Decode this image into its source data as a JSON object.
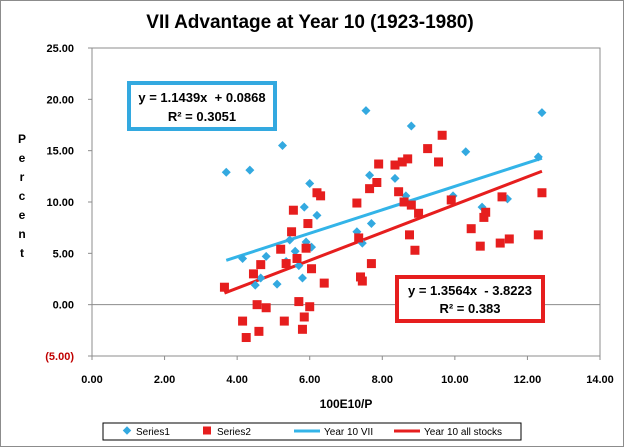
{
  "chart_data": {
    "type": "scatter",
    "title": "VII Advantage at Year 10 (1923-1980)",
    "xlabel": "100E10/P",
    "ylabel": "Percent",
    "xlim": [
      0,
      14
    ],
    "ylim": [
      -5,
      25
    ],
    "x_ticks": [
      0,
      2,
      4,
      6,
      8,
      10,
      12,
      14
    ],
    "x_tick_labels": [
      "0.00",
      "2.00",
      "4.00",
      "6.00",
      "8.00",
      "10.00",
      "12.00",
      "14.00"
    ],
    "y_ticks": [
      -5,
      0,
      5,
      10,
      15,
      20,
      25
    ],
    "y_tick_labels": [
      "(5.00)",
      "0.00",
      "5.00",
      "10.00",
      "15.00",
      "20.00",
      "25.00"
    ],
    "grid": false,
    "legend_position": "bottom",
    "series": [
      {
        "name": "Series1",
        "marker": "diamond",
        "color": "#33a9e0",
        "points": [
          [
            3.7,
            12.9
          ],
          [
            4.15,
            4.5
          ],
          [
            4.35,
            13.1
          ],
          [
            4.5,
            1.9
          ],
          [
            4.65,
            2.6
          ],
          [
            4.8,
            4.7
          ],
          [
            5.1,
            2.0
          ],
          [
            5.25,
            15.5
          ],
          [
            5.35,
            4.2
          ],
          [
            5.45,
            6.3
          ],
          [
            5.6,
            5.2
          ],
          [
            5.7,
            3.8
          ],
          [
            5.8,
            2.6
          ],
          [
            5.85,
            9.5
          ],
          [
            5.9,
            6.1
          ],
          [
            6.0,
            11.8
          ],
          [
            6.05,
            5.6
          ],
          [
            6.2,
            8.7
          ],
          [
            7.3,
            7.1
          ],
          [
            7.45,
            6.0
          ],
          [
            7.55,
            18.9
          ],
          [
            7.65,
            12.6
          ],
          [
            7.7,
            7.9
          ],
          [
            8.35,
            12.3
          ],
          [
            8.65,
            10.6
          ],
          [
            8.8,
            17.4
          ],
          [
            9.95,
            10.6
          ],
          [
            10.3,
            14.9
          ],
          [
            10.75,
            9.5
          ],
          [
            11.45,
            10.3
          ],
          [
            12.3,
            14.4
          ],
          [
            12.4,
            18.7
          ]
        ]
      },
      {
        "name": "Series2",
        "marker": "square",
        "color": "#e61e1e",
        "points": [
          [
            3.65,
            1.7
          ],
          [
            4.15,
            -1.6
          ],
          [
            4.25,
            -3.2
          ],
          [
            4.45,
            3.0
          ],
          [
            4.55,
            0.0
          ],
          [
            4.6,
            -2.6
          ],
          [
            4.65,
            3.9
          ],
          [
            4.8,
            -0.3
          ],
          [
            5.2,
            5.4
          ],
          [
            5.3,
            -1.6
          ],
          [
            5.35,
            4.0
          ],
          [
            5.5,
            7.1
          ],
          [
            5.55,
            9.2
          ],
          [
            5.65,
            4.5
          ],
          [
            5.7,
            0.3
          ],
          [
            5.8,
            -2.4
          ],
          [
            5.85,
            -1.2
          ],
          [
            5.9,
            5.5
          ],
          [
            5.95,
            7.9
          ],
          [
            6.0,
            -0.2
          ],
          [
            6.05,
            3.5
          ],
          [
            6.2,
            10.9
          ],
          [
            6.3,
            10.6
          ],
          [
            6.4,
            2.1
          ],
          [
            7.3,
            9.9
          ],
          [
            7.35,
            6.5
          ],
          [
            7.4,
            2.7
          ],
          [
            7.45,
            2.3
          ],
          [
            7.65,
            11.3
          ],
          [
            7.7,
            4.0
          ],
          [
            7.85,
            11.9
          ],
          [
            7.9,
            13.7
          ],
          [
            8.35,
            13.6
          ],
          [
            8.45,
            11.0
          ],
          [
            8.55,
            13.9
          ],
          [
            8.6,
            10.0
          ],
          [
            8.7,
            14.2
          ],
          [
            8.75,
            6.8
          ],
          [
            8.8,
            9.7
          ],
          [
            8.9,
            5.3
          ],
          [
            9.0,
            8.9
          ],
          [
            9.25,
            15.2
          ],
          [
            9.55,
            13.9
          ],
          [
            9.65,
            16.5
          ],
          [
            9.9,
            10.2
          ],
          [
            10.45,
            7.4
          ],
          [
            10.7,
            5.7
          ],
          [
            10.8,
            8.5
          ],
          [
            10.85,
            9.0
          ],
          [
            11.25,
            6.0
          ],
          [
            11.3,
            10.5
          ],
          [
            11.5,
            6.4
          ],
          [
            12.3,
            6.8
          ],
          [
            12.4,
            10.9
          ]
        ]
      }
    ],
    "trendlines": [
      {
        "name": "Year 10 VII",
        "color": "#33b4e8",
        "slope": 1.1439,
        "intercept": 0.0868,
        "x_range": [
          3.7,
          12.4
        ],
        "label": "y = 1.1439x  + 0.0868",
        "r2_label": "R² = 0.3051"
      },
      {
        "name": "Year 10 all stocks",
        "color": "#e61e1e",
        "slope": 1.3564,
        "intercept": -3.8223,
        "x_range": [
          3.65,
          12.4
        ],
        "label": "y = 1.3564x  - 3.8223",
        "r2_label": "R² = 0.383"
      }
    ]
  }
}
